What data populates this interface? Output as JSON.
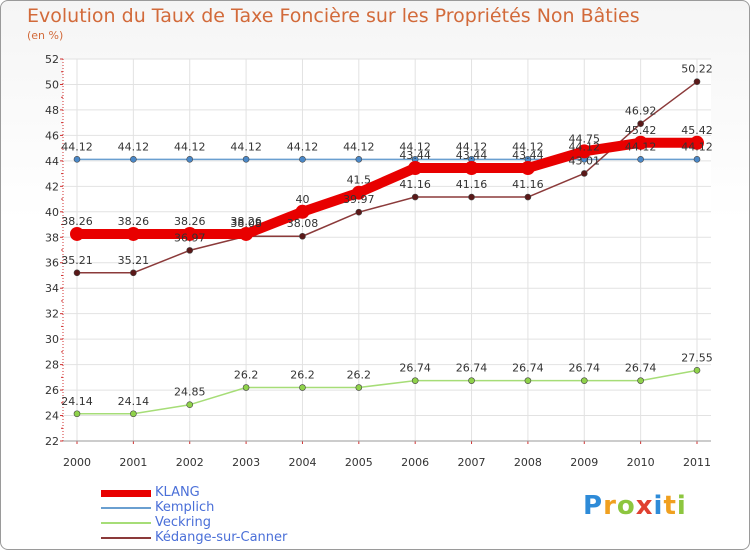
{
  "title": "Evolution du Taux de Taxe Foncière sur les Propriétés Non Bâties",
  "unit": "(en %)",
  "logo": {
    "text": "Proxiti",
    "letters": [
      {
        "ch": "P",
        "color": "#2e8bd8"
      },
      {
        "ch": "r",
        "color": "#f0a020"
      },
      {
        "ch": "o",
        "color": "#8dc63f"
      },
      {
        "ch": "x",
        "color": "#e04030"
      },
      {
        "ch": "i",
        "color": "#2e8bd8"
      },
      {
        "ch": "t",
        "color": "#f0a020"
      },
      {
        "ch": "i",
        "color": "#8dc63f"
      }
    ]
  },
  "chart_data": {
    "type": "line",
    "categories": [
      "2000",
      "2001",
      "2002",
      "2003",
      "2004",
      "2005",
      "2006",
      "2007",
      "2008",
      "2009",
      "2010",
      "2011"
    ],
    "ylim": [
      22,
      52
    ],
    "yticks": [
      "22",
      "24",
      "26",
      "28",
      "30",
      "32",
      "34",
      "36",
      "38",
      "40",
      "42",
      "44",
      "46",
      "48",
      "50",
      "52"
    ],
    "grid": true,
    "legend_position": "bottom-left",
    "series": [
      {
        "name": "KLANG",
        "color": "#e80000",
        "width": 10,
        "marker": 7,
        "values": [
          38.26,
          38.26,
          38.26,
          38.26,
          40,
          41.5,
          43.44,
          43.44,
          43.44,
          44.75,
          45.42,
          45.42
        ],
        "labels": [
          "38.26",
          "38.26",
          "38.26",
          "38.26",
          "40",
          "41.5",
          "43.44",
          "43.44",
          "43.44",
          "44.75",
          "45.42",
          "45.42"
        ]
      },
      {
        "name": "Kemplich",
        "color": "#6a9fd0",
        "width": 1.5,
        "marker": 3,
        "values": [
          44.12,
          44.12,
          44.12,
          44.12,
          44.12,
          44.12,
          44.12,
          44.12,
          44.12,
          44.12,
          44.12,
          44.12
        ],
        "labels": [
          "44.12",
          "44.12",
          "44.12",
          "44.12",
          "44.12",
          "44.12",
          "44.12",
          "44.12",
          "44.12",
          "44.12",
          "44.12",
          "44.12"
        ]
      },
      {
        "name": "Veckring",
        "color": "#a6dd77",
        "width": 1.5,
        "marker": 3,
        "values": [
          24.14,
          24.14,
          24.85,
          26.2,
          26.2,
          26.2,
          26.74,
          26.74,
          26.74,
          26.74,
          26.74,
          27.55
        ],
        "labels": [
          "24.14",
          "24.14",
          "24.85",
          "26.2",
          "26.2",
          "26.2",
          "26.74",
          "26.74",
          "26.74",
          "26.74",
          "26.74",
          "27.55"
        ]
      },
      {
        "name": "Kédange-sur-Canner",
        "color": "#8b3a3a",
        "width": 1.5,
        "marker": 3,
        "values": [
          35.21,
          35.21,
          36.97,
          38.08,
          38.08,
          39.97,
          41.16,
          41.16,
          41.16,
          43.01,
          46.92,
          50.22
        ],
        "labels": [
          "35.21",
          "35.21",
          "36.97",
          "38.08",
          "38.08",
          "39.97",
          "41.16",
          "41.16",
          "41.16",
          "43.01",
          "46.92",
          "50.22"
        ]
      }
    ]
  }
}
